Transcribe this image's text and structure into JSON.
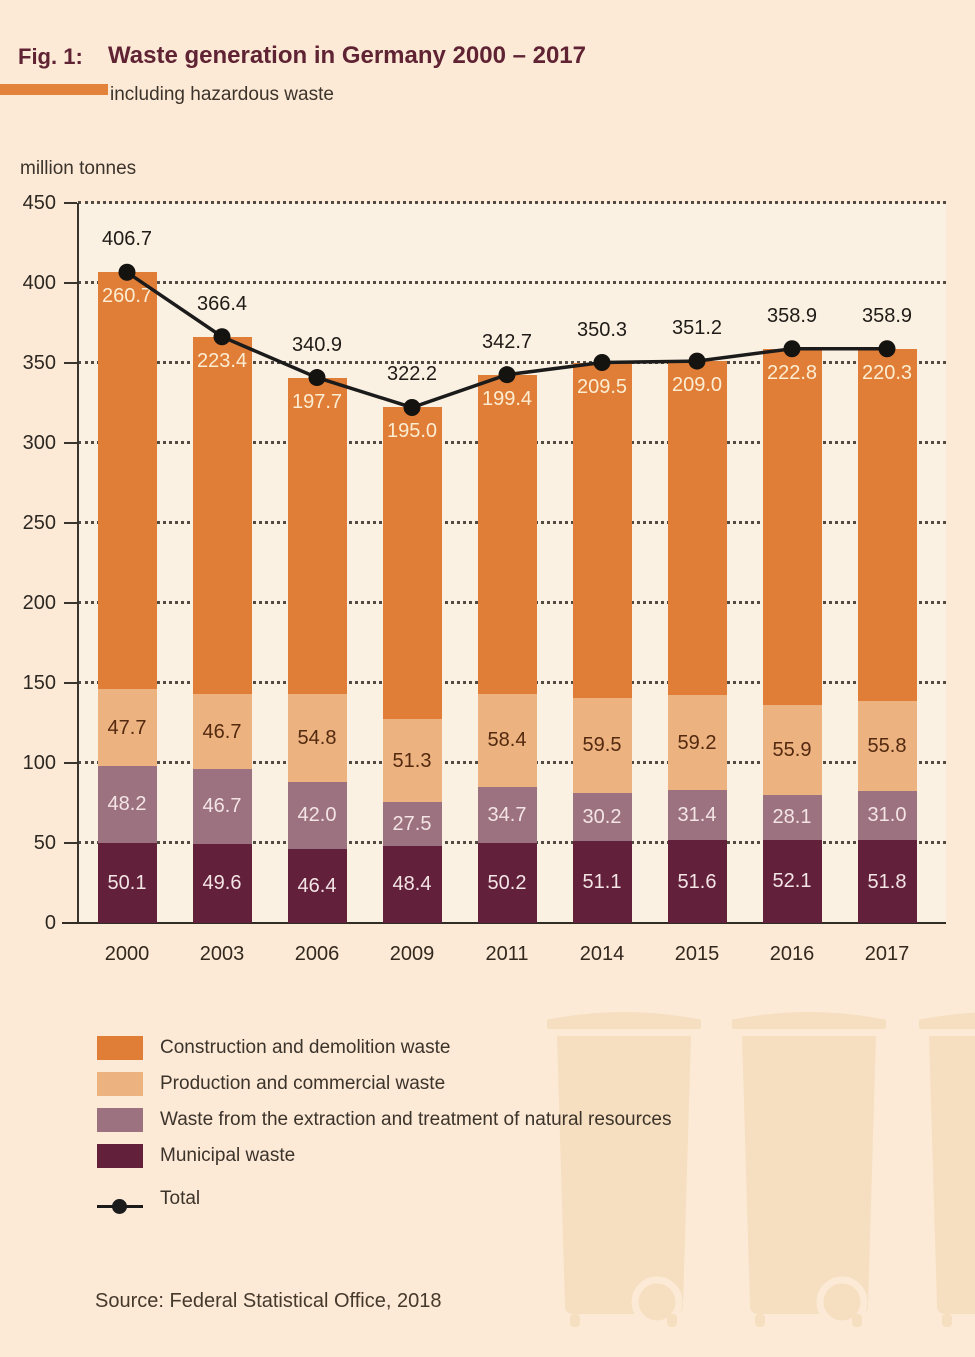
{
  "figure": {
    "label": "Fig. 1:",
    "title": "Waste generation in Germany 2000 – 2017",
    "subtitle": "including hazardous waste"
  },
  "unit_label": "million tonnes",
  "source": "Source: Federal Statistical Office, 2018",
  "colors": {
    "page_bg": "#fcead7",
    "plot_bg": "#fbf1e2",
    "accent_bar": "#e2823b",
    "construction": "#e07e38",
    "production": "#ecb280",
    "extraction": "#9d7280",
    "municipal": "#63203a",
    "total_line": "#1b1b1b",
    "bin_silhouette": "#f6dfc0"
  },
  "chart_data": {
    "type": "bar",
    "stacked": true,
    "title": "Waste generation in Germany 2000 – 2017, including hazardous waste",
    "ylabel": "million tonnes",
    "xlabel": "",
    "ylim": [
      0,
      450
    ],
    "yticks": [
      0,
      50,
      100,
      150,
      200,
      250,
      300,
      350,
      400,
      450
    ],
    "grid": "horizontal-dotted",
    "legend_position": "bottom-left",
    "categories": [
      "2000",
      "2003",
      "2006",
      "2009",
      "2011",
      "2014",
      "2015",
      "2016",
      "2017"
    ],
    "series": [
      {
        "name": "Municipal waste",
        "color": "#63203a",
        "label_color": "#f3e4e6",
        "label_pos": "center",
        "values": [
          50.1,
          49.6,
          46.4,
          48.4,
          50.2,
          51.1,
          51.6,
          52.1,
          51.8
        ]
      },
      {
        "name": "Waste from the extraction and treatment of natural resources",
        "color": "#9d7280",
        "label_color": "#f3e4e6",
        "label_pos": "center",
        "values": [
          48.2,
          46.7,
          42.0,
          27.5,
          34.7,
          30.2,
          31.4,
          28.1,
          31.0
        ]
      },
      {
        "name": "Production and commercial waste",
        "color": "#ecb280",
        "label_color": "#53290f",
        "label_pos": "center",
        "values": [
          47.7,
          46.7,
          54.8,
          51.3,
          58.4,
          59.5,
          59.2,
          55.9,
          55.8
        ]
      },
      {
        "name": "Construction and demolition waste",
        "color": "#e07e38",
        "label_color": "#fcedd2",
        "label_pos": "top",
        "values": [
          260.7,
          223.4,
          197.7,
          195.0,
          199.4,
          209.5,
          209.0,
          222.8,
          220.3
        ]
      }
    ],
    "total_series": {
      "name": "Total",
      "values": [
        406.7,
        366.4,
        340.9,
        322.2,
        342.7,
        350.3,
        351.2,
        358.9,
        358.9
      ]
    }
  },
  "legend": {
    "items": [
      {
        "label": "Construction and demolition waste",
        "swatch": "#e07e38",
        "marker": "box"
      },
      {
        "label": "Production and commercial waste",
        "swatch": "#ecb280",
        "marker": "box"
      },
      {
        "label": "Waste from the extraction and treatment of natural resources",
        "swatch": "#9d7280",
        "marker": "box"
      },
      {
        "label": "Municipal waste",
        "swatch": "#63203a",
        "marker": "box"
      },
      {
        "label": "Total",
        "swatch": "#1b1b1b",
        "marker": "line-dot"
      }
    ]
  }
}
